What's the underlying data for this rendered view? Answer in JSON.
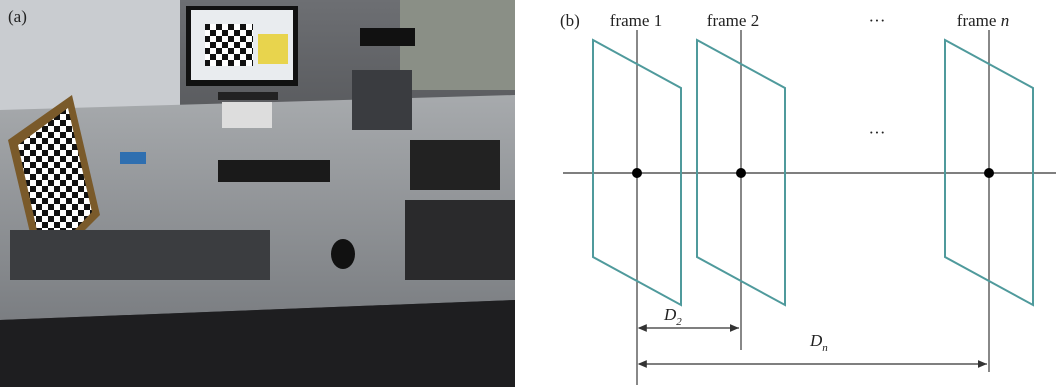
{
  "panels": {
    "a": {
      "label": "(a)"
    },
    "b": {
      "label": "(b)"
    }
  },
  "frames": [
    {
      "name": "frame",
      "index": "1"
    },
    {
      "name": "frame",
      "index": "2"
    },
    {
      "name": "frame",
      "index": "n"
    }
  ],
  "ellipsis": {
    "top": "···",
    "middle": "···"
  },
  "distances": [
    {
      "symbol": "D",
      "subscript": "2"
    },
    {
      "symbol": "D",
      "subscript": "n"
    }
  ]
}
